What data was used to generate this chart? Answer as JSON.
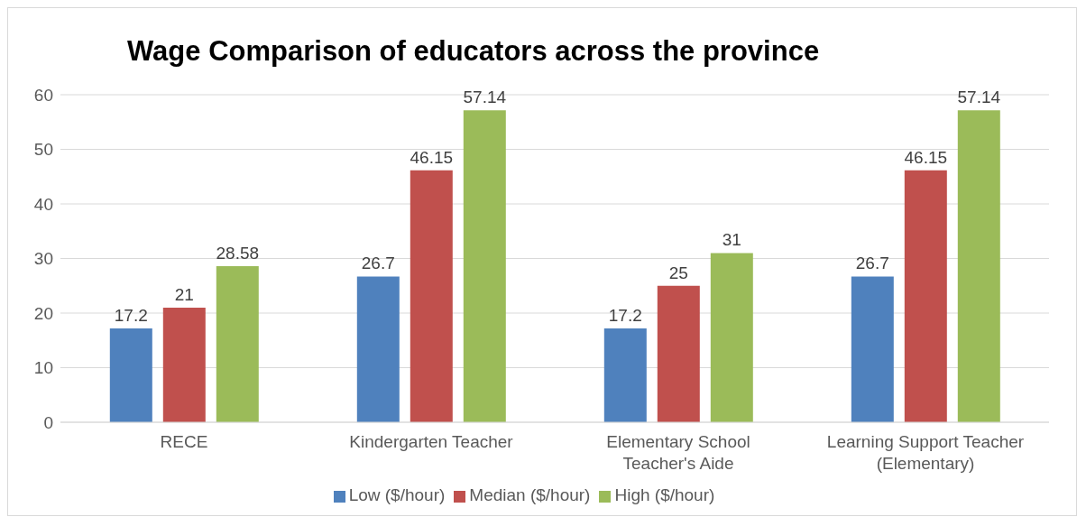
{
  "chart_data": {
    "type": "bar",
    "title": "Wage Comparison of educators across the province",
    "categories": [
      "RECE",
      "Kindergarten Teacher",
      "Elementary School Teacher's Aide",
      "Learning Support Teacher (Elementary)"
    ],
    "series": [
      {
        "name": "Low ($/hour)",
        "color": "#4f81bd",
        "values": [
          17.2,
          26.7,
          17.2,
          26.7
        ]
      },
      {
        "name": "Median ($/hour)",
        "color": "#c0504d",
        "values": [
          21,
          46.15,
          25,
          46.15
        ]
      },
      {
        "name": "High ($/hour)",
        "color": "#9bbb59",
        "values": [
          28.58,
          57.14,
          31,
          57.14
        ]
      }
    ],
    "ylim": [
      0,
      60
    ],
    "yticks": [
      0,
      10,
      20,
      30,
      40,
      50,
      60
    ],
    "grid": "y",
    "legend": "bottom",
    "data_labels": true
  }
}
